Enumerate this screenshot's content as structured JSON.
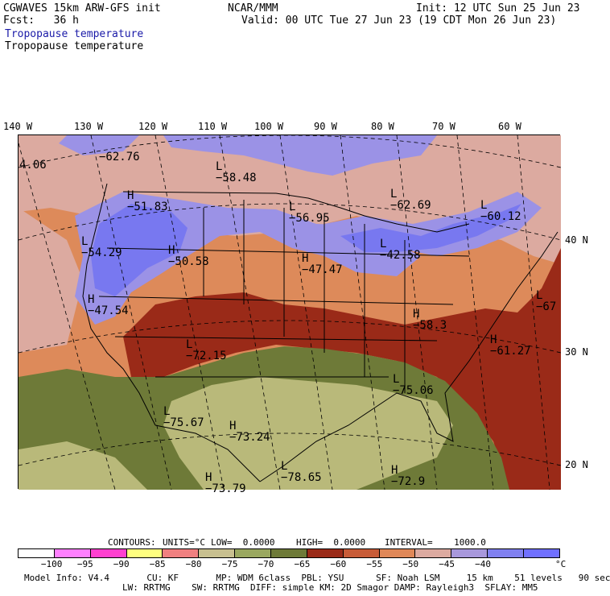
{
  "header": {
    "model": "CGWAVES 15km ARW-GFS init",
    "center": "NCAR/MMM",
    "init": "Init: 12 UTC Sun 25 Jun 23",
    "fcst": "Fcst:   36 h",
    "valid": "Valid: 00 UTC Tue 27 Jun 23 (19 CDT Mon 26 Jun 23)",
    "field1": "Tropopause temperature",
    "field2": "Tropopause temperature"
  },
  "lon_ticks": [
    "140 W",
    "130 W",
    "120 W",
    "110 W",
    "100 W",
    "90 W",
    "80 W",
    "70 W",
    "60 W"
  ],
  "lat_ticks": [
    "40 N",
    "30 N",
    "20 N"
  ],
  "map_labels": [
    {
      "letter": "",
      "value": "4.06"
    },
    {
      "letter": "",
      "value": "−62.76"
    },
    {
      "letter": "L",
      "value": "−58.48"
    },
    {
      "letter": "H",
      "value": "−51.83"
    },
    {
      "letter": "L",
      "value": "−56.95"
    },
    {
      "letter": "L",
      "value": "−62.69"
    },
    {
      "letter": "L",
      "value": "−60.12"
    },
    {
      "letter": "L",
      "value": "−54.29"
    },
    {
      "letter": "H",
      "value": "−50.58"
    },
    {
      "letter": "H",
      "value": "−47.47"
    },
    {
      "letter": "L",
      "value": "−42.58"
    },
    {
      "letter": "H",
      "value": "−47.54"
    },
    {
      "letter": "L",
      "value": "−67"
    },
    {
      "letter": "H",
      "value": "−58.3"
    },
    {
      "letter": "H",
      "value": "−61.27"
    },
    {
      "letter": "L",
      "value": "−72.15"
    },
    {
      "letter": "L",
      "value": "−75.06"
    },
    {
      "letter": "L",
      "value": "−75.67"
    },
    {
      "letter": "H",
      "value": "−73.24"
    },
    {
      "letter": "L",
      "value": "−78.65"
    },
    {
      "letter": "H",
      "value": "−73.79"
    },
    {
      "letter": "H",
      "value": "−72.9"
    }
  ],
  "contour_info": {
    "contours": "CONTOURS:",
    "units": "UNITS=°C",
    "low": "LOW=  0.0000",
    "high": "HIGH=  0.0000",
    "interval": "INTERVAL=    1000.0"
  },
  "colorbar": {
    "colors": [
      "#ffffff",
      "#ff80ff",
      "#ff40d0",
      "#ffff80",
      "#f08080",
      "#c8c090",
      "#9aa860",
      "#6e7a38",
      "#9a2a18",
      "#c85c38",
      "#e08858",
      "#dcaaa0",
      "#a898dc",
      "#8080f0",
      "#7070ff"
    ],
    "labels": [
      "−100",
      "−95",
      "−90",
      "−85",
      "−80",
      "−75",
      "−70",
      "−65",
      "−60",
      "−55",
      "−50",
      "−45",
      "−40"
    ],
    "unit": "°C"
  },
  "footer": {
    "line1": "Model Info: V4.4       CU: KF       MP: WDM 6class  PBL: YSU      SF: Noah LSM     15 km    51 levels   90 sec",
    "line2": "LW: RRTMG    SW: RRTMG  DIFF: simple KM: 2D Smagor DAMP: Rayleigh3  SFLAY: MM5"
  },
  "colors": {
    "purple": "#9b92e6",
    "blue": "#7878f0",
    "pink": "#dcaaa0",
    "orange": "#dd8a5a",
    "red": "#9a2a18",
    "olive": "#6e7a38",
    "tan": "#b9b97a"
  }
}
